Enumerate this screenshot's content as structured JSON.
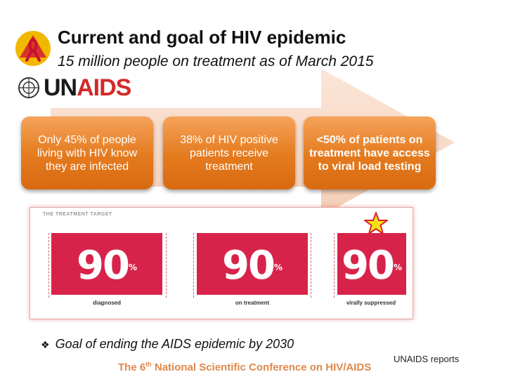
{
  "header": {
    "title": "Current and goal of HIV epidemic",
    "subtitle": "15 million people on treatment as of March 2015"
  },
  "logo": {
    "un_part": "UN",
    "aids_part": "AIDS"
  },
  "boxes": [
    {
      "text": "Only 45% of people living with HIV know they are infected"
    },
    {
      "text": "38% of HIV positive patients receive treatment"
    },
    {
      "text": "<50% of patients on treatment have access to viral load testing"
    }
  ],
  "treatment_target": {
    "label": "THE TREATMENT TARGET",
    "items": [
      {
        "value": "90",
        "unit": "%",
        "caption": "diagnosed"
      },
      {
        "value": "90",
        "unit": "%",
        "caption": "on treatment"
      },
      {
        "value": "90",
        "unit": "%",
        "caption": "virally suppressed"
      }
    ]
  },
  "goal": {
    "bullet": "❖",
    "text": "Goal of ending the AIDS epidemic by 2030"
  },
  "footer": {
    "prefix": "The 6",
    "superscript": "th",
    "suffix": " National Scientific Conference on HIV/AIDS",
    "source": "UNAIDS reports"
  },
  "colors": {
    "accent_orange": "#e47a1d",
    "target_red": "#d7234a",
    "footer_orange": "#e0874b",
    "star_yellow": "#f3e01a"
  }
}
